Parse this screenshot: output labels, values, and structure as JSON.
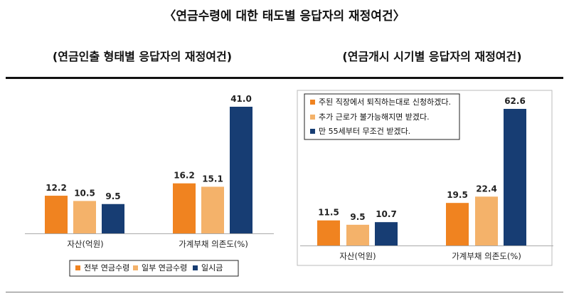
{
  "main_title": "〈연금수령에 대한 태도별 응답자의 재정여건〉",
  "colors": {
    "orange": "#f08320",
    "light": "#f4b26a",
    "navy": "#173d73"
  },
  "chart_data": [
    {
      "type": "bar",
      "title": "(연금인출 형태별 응답자의 재정여건)",
      "categories": [
        "자산(억원)",
        "가계부채 의존도(%)"
      ],
      "series": [
        {
          "name": "전부 연금수령",
          "values": [
            12.2,
            16.2
          ],
          "color": "#f08320"
        },
        {
          "name": "일부 연금수령",
          "values": [
            10.5,
            15.1
          ],
          "color": "#f4b26a"
        },
        {
          "name": "일시금",
          "values": [
            9.5,
            41.0
          ],
          "color": "#173d73"
        }
      ],
      "legend_position": "bottom",
      "ylim": [
        0,
        41.0
      ]
    },
    {
      "type": "bar",
      "title": "(연금개시 시기별 응답자의 재정여건)",
      "categories": [
        "자산(억원)",
        "가계부채 의존도(%)"
      ],
      "series": [
        {
          "name": "주된 직장에서 퇴직하는대로 신청하겠다.",
          "values": [
            11.5,
            19.5
          ],
          "color": "#f08320"
        },
        {
          "name": "추가 근로가 불가능해지면 받겠다.",
          "values": [
            9.5,
            22.4
          ],
          "color": "#f4b26a"
        },
        {
          "name": "만 55세부터 무조건 받겠다.",
          "values": [
            10.7,
            62.6
          ],
          "color": "#173d73"
        }
      ],
      "legend_position": "top-left",
      "ylim": [
        0,
        62.6
      ]
    }
  ]
}
